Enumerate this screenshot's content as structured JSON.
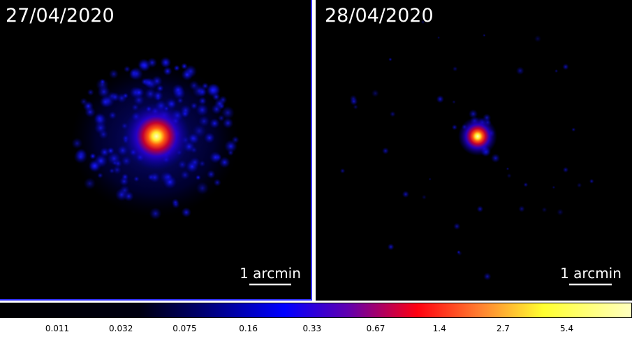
{
  "panels": [
    {
      "date": "27/04/2020",
      "scale_label": "1 arcmin"
    },
    {
      "date": "28/04/2020",
      "scale_label": "1 arcmin"
    }
  ],
  "colorbar": {
    "ticks": [
      0.011,
      0.032,
      0.075,
      0.16,
      0.33,
      0.67,
      1.4,
      2.7,
      5.4
    ]
  }
}
